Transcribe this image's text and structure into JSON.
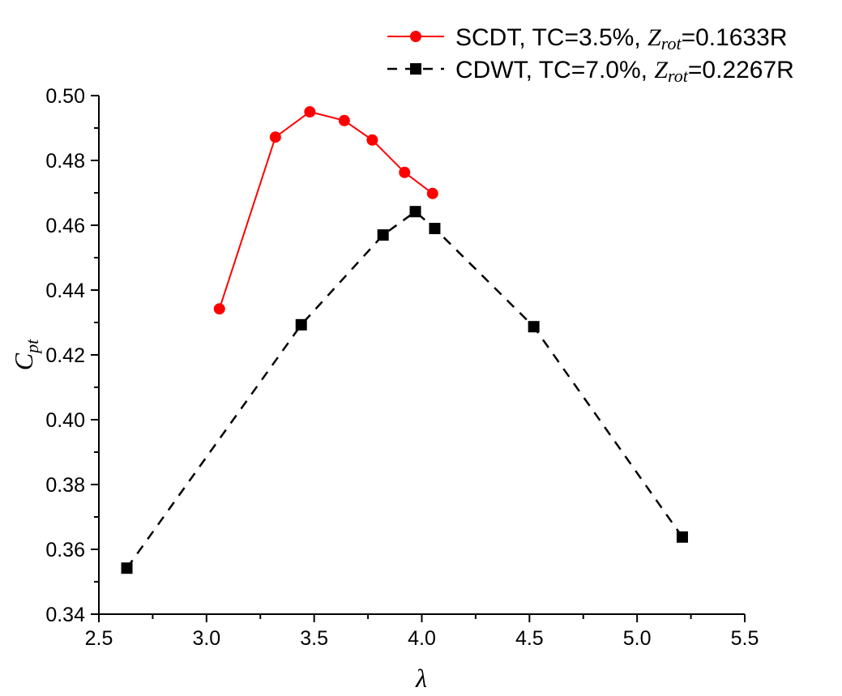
{
  "chart_data": {
    "type": "line",
    "title": "",
    "xlabel": "λ",
    "ylabel_main": "C",
    "ylabel_sub": "pt",
    "xlim": [
      2.5,
      5.5
    ],
    "ylim": [
      0.34,
      0.5
    ],
    "x_ticks": [
      2.5,
      3.0,
      3.5,
      4.0,
      4.5,
      5.0,
      5.5
    ],
    "x_tick_labels": [
      "2.5",
      "3.0",
      "3.5",
      "4.0",
      "4.5",
      "5.0",
      "5.5"
    ],
    "y_ticks": [
      0.34,
      0.36,
      0.38,
      0.4,
      0.42,
      0.44,
      0.46,
      0.48,
      0.5
    ],
    "y_tick_labels": [
      "0.34",
      "0.36",
      "0.38",
      "0.40",
      "0.42",
      "0.44",
      "0.46",
      "0.48",
      "0.50"
    ],
    "grid": false,
    "legend_position": "top-right",
    "series": [
      {
        "name": "SCDT",
        "legend_prefix": "SCDT, TC=3.5%, ",
        "legend_var": "Z",
        "legend_var_sub": "rot",
        "legend_suffix": "=0.1633R",
        "color": "#ff0000",
        "marker": "circle",
        "line_style": "solid",
        "x": [
          3.06,
          3.32,
          3.48,
          3.64,
          3.77,
          3.92,
          4.05
        ],
        "y": [
          0.4342,
          0.4872,
          0.495,
          0.4923,
          0.4863,
          0.4763,
          0.4698
        ]
      },
      {
        "name": "CDWT",
        "legend_prefix": "CDWT, TC=7.0%, ",
        "legend_var": "Z",
        "legend_var_sub": "rot",
        "legend_suffix": "=0.2267R",
        "color": "#000000",
        "marker": "square",
        "line_style": "dashed",
        "x": [
          2.63,
          3.44,
          3.82,
          3.97,
          4.06,
          4.52,
          5.21
        ],
        "y": [
          0.3542,
          0.4293,
          0.457,
          0.4642,
          0.459,
          0.4287,
          0.3638
        ]
      }
    ]
  }
}
